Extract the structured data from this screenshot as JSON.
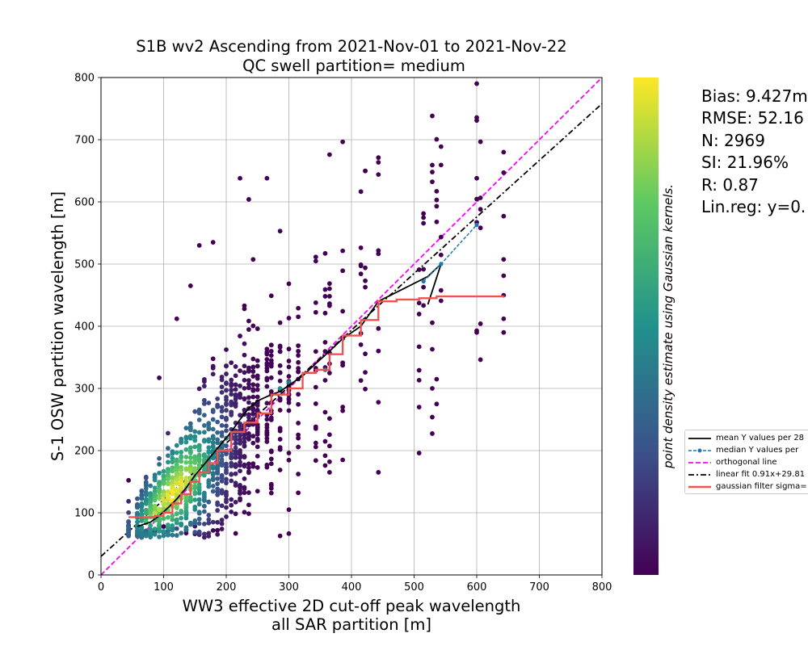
{
  "chart_data": {
    "type": "scatter",
    "title": "S1B wv2 Ascending from 2021-Nov-01 to 2021-Nov-22",
    "subtitle": "QC swell partition= medium",
    "xlabel_line1": "WW3 effective 2D cut-off peak wavelength",
    "xlabel_line2": "all SAR partition [m]",
    "ylabel": "S-1 OSW partition wavelength [m]",
    "xlim": [
      0,
      800
    ],
    "ylim": [
      0,
      800
    ],
    "xticks": [
      0,
      100,
      200,
      300,
      400,
      500,
      600,
      700,
      800
    ],
    "yticks": [
      0,
      100,
      200,
      300,
      400,
      500,
      600,
      700,
      800
    ],
    "grid": true,
    "colorbar_label": "point density estimate using Gaussian kernels.",
    "colormap": [
      "#440154",
      "#3b528b",
      "#21918c",
      "#5ec962",
      "#fde725"
    ],
    "x_columns": [
      44,
      58,
      65,
      72,
      79,
      86,
      93,
      100,
      107,
      114,
      121,
      128,
      136,
      143,
      150,
      157,
      165,
      172,
      179,
      186,
      193,
      200,
      208,
      215,
      222,
      229,
      236,
      243,
      250,
      265,
      272,
      286,
      300,
      315,
      343,
      358,
      365,
      386,
      415,
      422,
      443,
      508,
      515,
      529,
      536,
      543,
      600,
      606,
      643
    ],
    "scatter_points": [
      [
        44,
        80,
        0.0
      ],
      [
        58,
        95,
        0.3
      ],
      [
        65,
        90,
        0.5
      ],
      [
        72,
        85,
        0.7
      ],
      [
        79,
        95,
        0.8
      ],
      [
        86,
        100,
        0.9
      ],
      [
        93,
        105,
        0.9
      ],
      [
        93,
        317,
        0.0
      ],
      [
        100,
        152,
        0.1
      ],
      [
        107,
        110,
        0.9
      ],
      [
        114,
        120,
        1.0
      ],
      [
        121,
        130,
        0.9
      ],
      [
        121,
        412,
        0.0
      ],
      [
        128,
        140,
        0.85
      ],
      [
        136,
        145,
        0.8
      ],
      [
        143,
        155,
        0.7
      ],
      [
        143,
        465,
        0.0
      ],
      [
        150,
        165,
        0.6
      ],
      [
        157,
        530,
        0.0
      ],
      [
        165,
        175,
        0.55
      ],
      [
        172,
        185,
        0.5
      ],
      [
        179,
        190,
        0.45
      ],
      [
        179,
        535,
        0.0
      ],
      [
        186,
        200,
        0.45
      ],
      [
        193,
        210,
        0.45
      ],
      [
        200,
        220,
        0.4
      ],
      [
        222,
        638,
        0.0
      ],
      [
        236,
        604,
        0.0
      ],
      [
        265,
        638,
        0.0
      ],
      [
        286,
        553,
        0.0
      ],
      [
        286,
        300,
        0.5
      ],
      [
        300,
        310,
        0.4
      ],
      [
        300,
        105,
        0.0
      ],
      [
        358,
        330,
        0.3
      ],
      [
        365,
        676,
        0.0
      ],
      [
        365,
        165,
        0.0
      ],
      [
        386,
        380,
        0.2
      ],
      [
        443,
        644,
        0.0
      ],
      [
        443,
        165,
        0.0
      ],
      [
        508,
        196,
        0.0
      ],
      [
        508,
        270,
        0.0
      ],
      [
        529,
        648,
        0.0
      ],
      [
        529,
        300,
        0.0
      ],
      [
        529,
        363,
        0.0
      ],
      [
        536,
        593,
        0.0
      ],
      [
        600,
        638,
        0.0
      ],
      [
        600,
        390,
        0.0
      ],
      [
        643,
        680,
        0.0
      ],
      [
        643,
        577,
        0.0
      ],
      [
        643,
        390,
        0.0
      ],
      [
        643,
        412,
        0.0
      ]
    ],
    "series": [
      {
        "name": "mean Y values per 28...",
        "style": "solid",
        "color": "#000000",
        "x": [
          58,
          79,
          93,
          107,
          121,
          136,
          150,
          165,
          179,
          193,
          208,
          222,
          236,
          250,
          272,
          286,
          300,
          322,
          343,
          365,
          386,
          415,
          443,
          522,
          543,
          522
        ],
        "y": [
          78,
          85,
          95,
          108,
          122,
          140,
          160,
          178,
          195,
          212,
          230,
          250,
          268,
          280,
          290,
          295,
          305,
          320,
          340,
          360,
          380,
          400,
          440,
          480,
          500,
          435
        ]
      },
      {
        "name": "median Y values per ...",
        "style": "dashed-markers",
        "color": "#1f77b4",
        "x": [
          515,
          543,
          600
        ],
        "y": [
          472,
          500,
          563
        ]
      },
      {
        "name": "orthogonal line",
        "style": "dashed",
        "color": "#ff00ff",
        "x": [
          0,
          800
        ],
        "y": [
          0,
          800
        ]
      },
      {
        "name": "linear fit 0.91x+29.81",
        "style": "dashdot",
        "color": "#000000",
        "x": [
          0,
          800
        ],
        "y": [
          29.81,
          757.81
        ]
      },
      {
        "name": "gaussian filter sigma=...",
        "style": "step",
        "color": "#ef5350",
        "x": [
          44,
          86,
          100,
          114,
          128,
          143,
          157,
          172,
          186,
          208,
          229,
          250,
          272,
          300,
          322,
          343,
          365,
          386,
          415,
          443,
          472,
          508,
          536,
          643
        ],
        "y": [
          93,
          95,
          100,
          115,
          130,
          150,
          165,
          180,
          200,
          230,
          245,
          260,
          290,
          300,
          325,
          330,
          355,
          385,
          410,
          440,
          443,
          445,
          448,
          449
        ]
      }
    ]
  },
  "stats": {
    "bias": "Bias: 9.427m",
    "rmse": "RMSE: 52.16",
    "n": "N: 2969",
    "si": "SI: 21.96%",
    "r": "R: 0.87",
    "linreg": "Lin.reg: y=0."
  },
  "legend": {
    "items": [
      "mean Y values per 28",
      "median Y values per",
      "orthogonal line",
      "linear fit 0.91x+29.81",
      "gaussian filter sigma="
    ]
  }
}
